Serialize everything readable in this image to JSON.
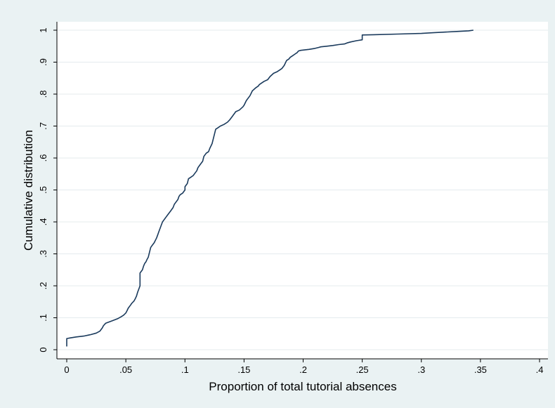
{
  "chart_data": {
    "type": "line",
    "title": "",
    "xlabel": "Proportion of total tutorial absences",
    "ylabel": "Cumulative distribution",
    "xlim": [
      0,
      0.4
    ],
    "ylim": [
      0,
      1
    ],
    "grid": true,
    "legend": "none",
    "x_ticks": [
      {
        "value": 0,
        "label": "0"
      },
      {
        "value": 0.05,
        "label": ".05"
      },
      {
        "value": 0.1,
        "label": ".1"
      },
      {
        "value": 0.15,
        "label": ".15"
      },
      {
        "value": 0.2,
        "label": ".2"
      },
      {
        "value": 0.25,
        "label": ".25"
      },
      {
        "value": 0.3,
        "label": ".3"
      },
      {
        "value": 0.35,
        "label": ".35"
      },
      {
        "value": 0.4,
        "label": ".4"
      }
    ],
    "y_ticks": [
      {
        "value": 0,
        "label": "0"
      },
      {
        "value": 0.1,
        "label": ".1"
      },
      {
        "value": 0.2,
        "label": ".2"
      },
      {
        "value": 0.3,
        "label": ".3"
      },
      {
        "value": 0.4,
        "label": ".4"
      },
      {
        "value": 0.5,
        "label": ".5"
      },
      {
        "value": 0.6,
        "label": ".6"
      },
      {
        "value": 0.7,
        "label": ".7"
      },
      {
        "value": 0.8,
        "label": ".8"
      },
      {
        "value": 0.9,
        "label": ".9"
      },
      {
        "value": 1,
        "label": "1"
      }
    ],
    "colors": {
      "line": "#1a3a5c",
      "plot_bg": "#ffffff",
      "outer_bg": "#eaf2f3",
      "grid": "#e4ebee"
    },
    "series": [
      {
        "x": [
          0,
          0,
          0.003,
          0.008,
          0.015,
          0.02,
          0.025,
          0.028,
          0.03,
          0.031,
          0.033,
          0.038,
          0.043,
          0.046,
          0.048,
          0.05,
          0.051,
          0.052,
          0.054,
          0.055,
          0.057,
          0.058,
          0.059,
          0.06,
          0.061,
          0.062,
          0.062,
          0.063,
          0.064,
          0.065,
          0.066,
          0.067,
          0.068,
          0.069,
          0.07,
          0.071,
          0.072,
          0.073,
          0.074,
          0.076,
          0.077,
          0.078,
          0.079,
          0.08,
          0.081,
          0.082,
          0.083,
          0.084,
          0.085,
          0.086,
          0.087,
          0.088,
          0.09,
          0.091,
          0.092,
          0.094,
          0.095,
          0.096,
          0.098,
          0.1,
          0.1,
          0.102,
          0.103,
          0.105,
          0.107,
          0.108,
          0.11,
          0.111,
          0.113,
          0.115,
          0.116,
          0.118,
          0.12,
          0.121,
          0.123,
          0.124,
          0.125,
          0.126,
          0.128,
          0.13,
          0.133,
          0.136,
          0.138,
          0.14,
          0.143,
          0.146,
          0.149,
          0.15,
          0.152,
          0.155,
          0.157,
          0.16,
          0.162,
          0.163,
          0.165,
          0.167,
          0.17,
          0.172,
          0.175,
          0.178,
          0.18,
          0.182,
          0.184,
          0.186,
          0.188,
          0.189,
          0.191,
          0.193,
          0.195,
          0.196,
          0.198,
          0.205,
          0.21,
          0.213,
          0.215,
          0.22,
          0.225,
          0.23,
          0.235,
          0.237,
          0.24,
          0.245,
          0.25,
          0.25,
          0.26,
          0.28,
          0.3,
          0.31,
          0.32,
          0.33,
          0.34,
          0.344
        ],
        "y": [
          0.01,
          0.035,
          0.037,
          0.04,
          0.043,
          0.047,
          0.052,
          0.058,
          0.068,
          0.075,
          0.083,
          0.09,
          0.097,
          0.103,
          0.108,
          0.115,
          0.122,
          0.13,
          0.14,
          0.145,
          0.153,
          0.16,
          0.168,
          0.18,
          0.19,
          0.2,
          0.24,
          0.245,
          0.25,
          0.262,
          0.27,
          0.275,
          0.283,
          0.29,
          0.305,
          0.32,
          0.325,
          0.33,
          0.335,
          0.35,
          0.36,
          0.37,
          0.38,
          0.39,
          0.4,
          0.405,
          0.41,
          0.415,
          0.42,
          0.425,
          0.43,
          0.435,
          0.445,
          0.455,
          0.46,
          0.47,
          0.48,
          0.485,
          0.49,
          0.5,
          0.51,
          0.52,
          0.535,
          0.54,
          0.545,
          0.55,
          0.56,
          0.57,
          0.58,
          0.59,
          0.605,
          0.615,
          0.62,
          0.63,
          0.645,
          0.66,
          0.675,
          0.69,
          0.695,
          0.7,
          0.705,
          0.712,
          0.72,
          0.73,
          0.745,
          0.75,
          0.76,
          0.765,
          0.78,
          0.795,
          0.81,
          0.82,
          0.825,
          0.83,
          0.835,
          0.84,
          0.845,
          0.855,
          0.865,
          0.87,
          0.875,
          0.88,
          0.89,
          0.905,
          0.91,
          0.915,
          0.92,
          0.925,
          0.93,
          0.935,
          0.937,
          0.94,
          0.943,
          0.946,
          0.948,
          0.95,
          0.952,
          0.955,
          0.957,
          0.96,
          0.963,
          0.967,
          0.97,
          0.985,
          0.986,
          0.988,
          0.99,
          0.992,
          0.994,
          0.996,
          0.998,
          1.0
        ]
      }
    ]
  }
}
